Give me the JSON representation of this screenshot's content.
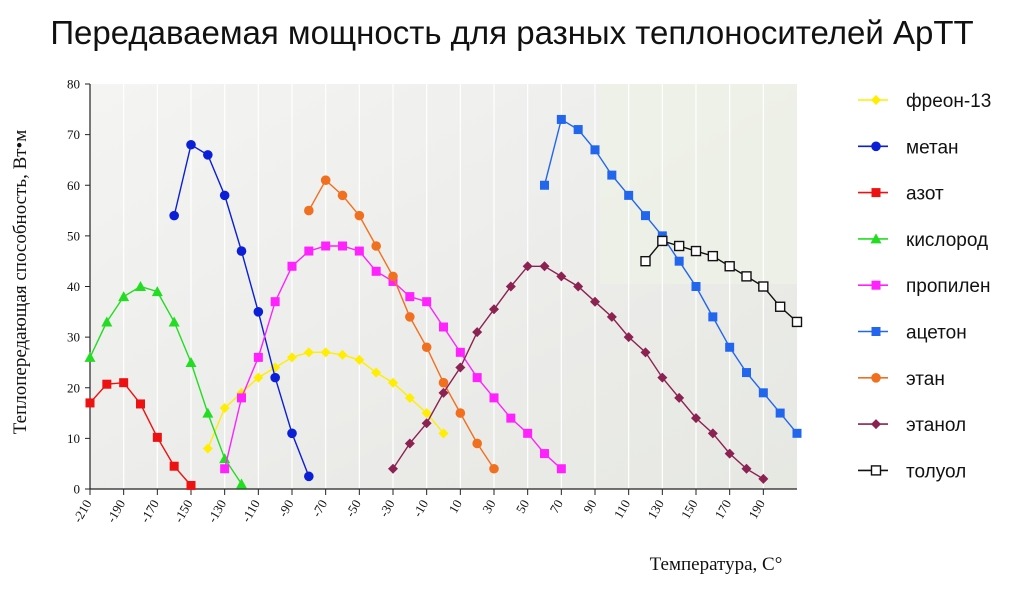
{
  "chart_data": {
    "type": "line",
    "title": "Передаваемая мощность для разных теплоносителей АрТТ",
    "xlabel": "Температура, С°",
    "ylabel": "Теплопередающая способность, Вт•м",
    "xlim": [
      -210,
      210
    ],
    "ylim": [
      0,
      80
    ],
    "x_ticks": [
      -210,
      -190,
      -170,
      -150,
      -130,
      -110,
      -90,
      -70,
      -50,
      -30,
      -10,
      10,
      30,
      50,
      70,
      90,
      110,
      130,
      150,
      170,
      190
    ],
    "y_ticks": [
      0,
      10,
      20,
      30,
      40,
      50,
      60,
      70,
      80
    ],
    "grid": "vertical",
    "legend_position": "right",
    "series": [
      {
        "name": "фреон-13",
        "color": "#ffee00",
        "marker": "diamond",
        "x": [
          -140,
          -130,
          -120,
          -110,
          -100,
          -90,
          -80,
          -70,
          -60,
          -50,
          -40,
          -30,
          -20,
          -10,
          0
        ],
        "y": [
          8,
          16,
          19,
          22,
          24,
          26,
          27,
          27,
          26.5,
          25.5,
          23,
          21,
          18,
          15,
          11
        ]
      },
      {
        "name": "метан",
        "color": "#0a1fd6",
        "marker": "circle",
        "x": [
          -160,
          -150,
          -140,
          -130,
          -120,
          -110,
          -100,
          -90,
          -80
        ],
        "y": [
          54,
          68,
          66,
          58,
          47,
          35,
          22,
          11,
          2.5
        ]
      },
      {
        "name": "азот",
        "color": "#ee1111",
        "marker": "square",
        "x": [
          -210,
          -200,
          -190,
          -180,
          -170,
          -160,
          -150
        ],
        "y": [
          17,
          20.7,
          21,
          16.8,
          10.2,
          4.5,
          0.7
        ]
      },
      {
        "name": "кислород",
        "color": "#22dd22",
        "marker": "triangle",
        "x": [
          -210,
          -200,
          -190,
          -180,
          -170,
          -160,
          -150,
          -140,
          -130,
          -120
        ],
        "y": [
          26,
          33,
          38,
          40,
          39,
          33,
          25,
          15,
          6,
          1
        ]
      },
      {
        "name": "пропилен",
        "color": "#ff22ff",
        "marker": "square",
        "x": [
          -130,
          -120,
          -110,
          -100,
          -90,
          -80,
          -70,
          -60,
          -50,
          -40,
          -30,
          -20,
          -10,
          0,
          10,
          20,
          30,
          40,
          50,
          60,
          70
        ],
        "y": [
          4,
          18,
          26,
          37,
          44,
          47,
          48,
          48,
          47,
          43,
          41,
          38,
          37,
          32,
          27,
          22,
          18,
          14,
          11,
          7,
          4
        ]
      },
      {
        "name": "ацетон",
        "color": "#2266ee",
        "marker": "square",
        "x": [
          60,
          70,
          80,
          90,
          100,
          110,
          120,
          130,
          140,
          150,
          160,
          170,
          180,
          190,
          200,
          210
        ],
        "y": [
          60,
          73,
          71,
          67,
          62,
          58,
          54,
          50,
          45,
          40,
          34,
          28,
          23,
          19,
          15,
          11
        ]
      },
      {
        "name": "этан",
        "color": "#f07020",
        "marker": "circle",
        "x": [
          -80,
          -70,
          -60,
          -50,
          -40,
          -30,
          -20,
          -10,
          0,
          10,
          20,
          30
        ],
        "y": [
          55,
          61,
          58,
          54,
          48,
          42,
          34,
          28,
          21,
          15,
          9,
          4
        ]
      },
      {
        "name": "этанол",
        "color": "#8b2252",
        "marker": "diamond",
        "x": [
          -30,
          -20,
          -10,
          0,
          10,
          20,
          30,
          40,
          50,
          60,
          70,
          80,
          90,
          100,
          110,
          120,
          130,
          140,
          150,
          160,
          170,
          180,
          190
        ],
        "y": [
          4,
          9,
          13,
          19,
          24,
          31,
          35.5,
          40,
          44,
          44,
          42,
          40,
          37,
          34,
          30,
          27,
          22,
          18,
          14,
          11,
          7,
          4,
          2
        ]
      },
      {
        "name": "толуол",
        "color": "#111111",
        "marker": "open-square",
        "x": [
          120,
          130,
          140,
          150,
          160,
          170,
          180,
          190,
          200,
          210
        ],
        "y": [
          45,
          49,
          48,
          47,
          46,
          44,
          42,
          40,
          36,
          33
        ]
      }
    ]
  }
}
